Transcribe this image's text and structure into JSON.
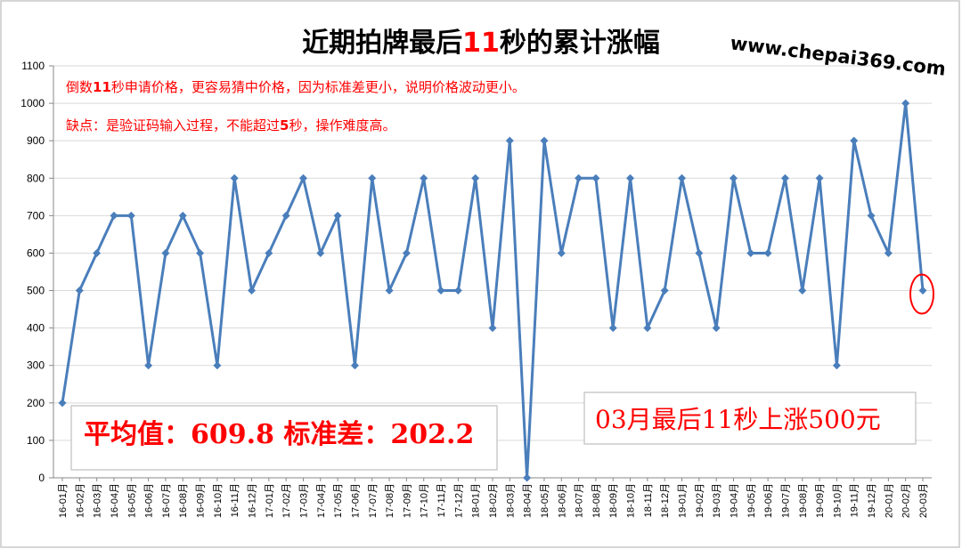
{
  "colors": {
    "line": "#4a7ebb",
    "marker": "#4a7ebb",
    "accent_red": "#ff0000",
    "grid": "#d9d9d9",
    "axis": "#888888",
    "box_border": "#bfbfbf",
    "frame_border": "#c9c9c9"
  },
  "header": {
    "title_before": "近期拍牌最后",
    "title_number": "11",
    "title_after": "秒的累计涨幅",
    "website": "www.chepai369.com"
  },
  "notes": {
    "line1_prefix": "倒数",
    "line1_number": "11",
    "line1_suffix": "秒申请价格，更容易猜中价格，因为标准差更小，说明价格波动更小。",
    "line2_prefix": "缺点：是验证码输入过程，不能超过",
    "line2_number": "5",
    "line2_suffix": "秒，操作难度高。"
  },
  "stats_box": {
    "text": "平均值：609.8 标准差：202.2"
  },
  "summary_box": {
    "text": "03月最后11秒上涨500元"
  },
  "chart_data": {
    "type": "line",
    "title": "近期拍牌最后11秒的累计涨幅",
    "xlabel": "",
    "ylabel": "",
    "ylim": [
      0,
      1100
    ],
    "yticks": [
      0,
      100,
      200,
      300,
      400,
      500,
      600,
      700,
      800,
      900,
      1000,
      1100
    ],
    "grid": true,
    "categories": [
      "16-01月",
      "16-02月",
      "16-03月",
      "16-04月",
      "16-05月",
      "16-06月",
      "16-07月",
      "16-08月",
      "16-09月",
      "16-10月",
      "16-11月",
      "16-12月",
      "17-01月",
      "17-02月",
      "17-03月",
      "17-04月",
      "17-05月",
      "17-06月",
      "17-07月",
      "17-08月",
      "17-09月",
      "17-10月",
      "17-11月",
      "17-12月",
      "18-01月",
      "18-02月",
      "18-03月",
      "18-04月",
      "18-05月",
      "18-06月",
      "18-07月",
      "18-08月",
      "18-09月",
      "18-10月",
      "18-11月",
      "18-12月",
      "19-01月",
      "19-02月",
      "19-03月",
      "19-04月",
      "19-05月",
      "19-06月",
      "19-07月",
      "19-08月",
      "19-09月",
      "19-10月",
      "19-11月",
      "19-12月",
      "20-01月",
      "20-02月",
      "20-03月"
    ],
    "values": [
      200,
      500,
      600,
      700,
      700,
      300,
      600,
      700,
      600,
      300,
      800,
      500,
      600,
      700,
      800,
      600,
      700,
      300,
      800,
      500,
      600,
      800,
      500,
      500,
      800,
      400,
      900,
      0,
      900,
      600,
      800,
      800,
      400,
      800,
      400,
      500,
      800,
      600,
      400,
      800,
      600,
      600,
      800,
      500,
      800,
      300,
      900,
      700,
      600,
      1000,
      500
    ],
    "highlight_last_point": true
  }
}
